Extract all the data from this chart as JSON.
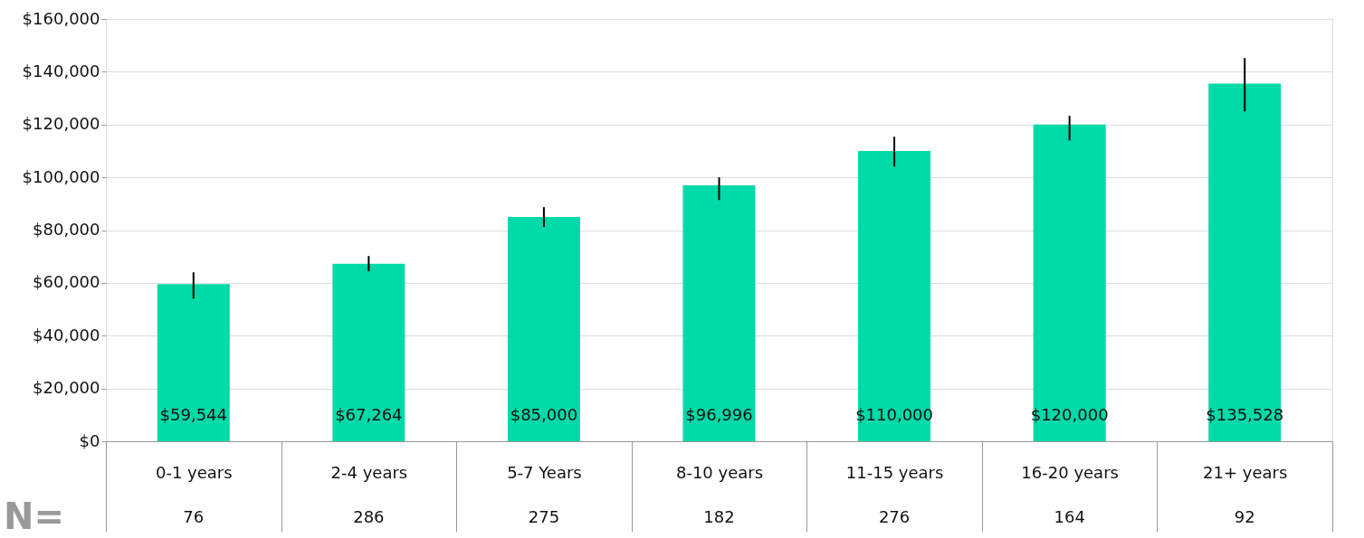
{
  "chart_data": {
    "type": "bar",
    "categories": [
      "0-1 years",
      "2-4 years",
      "5-7 Years",
      "8-10 years",
      "11-15 years",
      "16-20 years",
      "21+ years"
    ],
    "values": [
      59544,
      67264,
      85000,
      96996,
      110000,
      120000,
      135528
    ],
    "value_labels": [
      "$59,544",
      "$67,264",
      "$85,000",
      "$96,996",
      "$110,000",
      "$120,000",
      "$135,528"
    ],
    "errors": [
      [
        54000,
        64000
      ],
      [
        64400,
        70200
      ],
      [
        81200,
        88700
      ],
      [
        91400,
        100000
      ],
      [
        104100,
        115400
      ],
      [
        114000,
        123300
      ],
      [
        125000,
        145200
      ]
    ],
    "color": "#00d9a8",
    "ylim": [
      0,
      160000
    ],
    "yticks": [
      {
        "value": 0,
        "label": "$0"
      },
      {
        "value": 20000,
        "label": "$20,000"
      },
      {
        "value": 40000,
        "label": "$40,000"
      },
      {
        "value": 60000,
        "label": "$60,000"
      },
      {
        "value": 80000,
        "label": "$80,000"
      },
      {
        "value": 100000,
        "label": "$100,000"
      },
      {
        "value": 120000,
        "label": "$120,000"
      },
      {
        "value": 140000,
        "label": "$140,000"
      },
      {
        "value": 160000,
        "label": "$160,000"
      }
    ],
    "grid": "y",
    "annotations": [
      "N=",
      "76",
      "286",
      "275",
      "182",
      "276",
      "164",
      "92"
    ]
  }
}
